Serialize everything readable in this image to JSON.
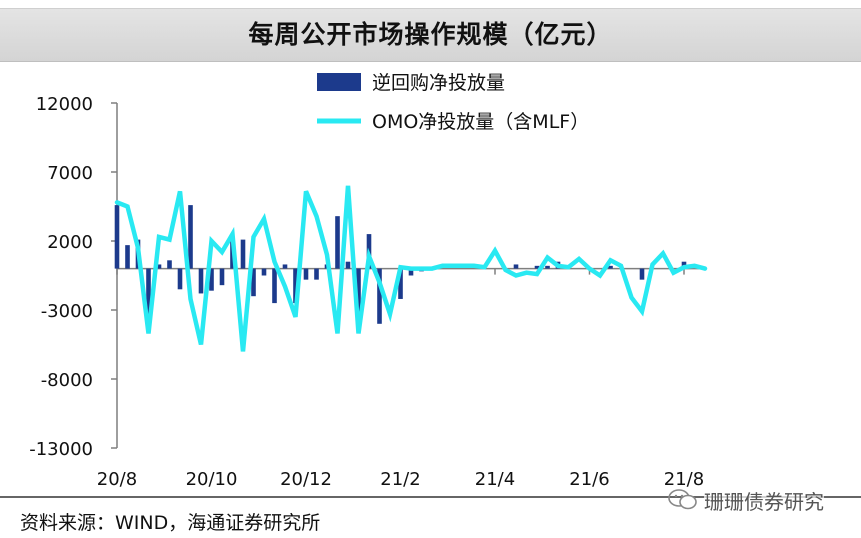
{
  "title": "每周公开市场操作规模（亿元）",
  "source": "资料来源：WIND，海通证券研究所",
  "watermark": "珊珊债券研究",
  "colors": {
    "bar": "#1c3a8c",
    "line": "#29e9f2",
    "axis": "#7f7f7f"
  },
  "chart_data": {
    "type": "bar",
    "title": "每周公开市场操作规模（亿元）",
    "xlabel": "",
    "ylabel": "",
    "ylim": [
      -13000,
      12000
    ],
    "yticks": [
      12000,
      7000,
      2000,
      -3000,
      -8000,
      -13000
    ],
    "ytick_labels": [
      "12000",
      "7000",
      "2000",
      "-3000",
      "-8000",
      "-13000"
    ],
    "xtick_labels": [
      "20/8",
      "20/10",
      "20/12",
      "21/2",
      "21/4",
      "21/6",
      "21/8"
    ],
    "xtick_index": [
      0,
      9,
      18,
      27,
      36,
      45,
      54
    ],
    "legend_position": "top",
    "series": [
      {
        "name": "逆回购净投放量",
        "type": "bar",
        "values": [
          4600,
          1700,
          2100,
          -4000,
          300,
          600,
          -1500,
          4600,
          -1800,
          -1600,
          -1200,
          2200,
          2100,
          -2000,
          -500,
          -2500,
          300,
          -2500,
          -800,
          -800,
          300,
          3800,
          500,
          -4000,
          2500,
          -4000,
          0,
          -2200,
          -500,
          -200,
          0,
          0,
          0,
          0,
          0,
          0,
          0,
          0,
          300,
          0,
          200,
          200,
          500,
          0,
          0,
          0,
          0,
          200,
          0,
          0,
          -800,
          0,
          0,
          0,
          500,
          0,
          0
        ]
      },
      {
        "name": "OMO净投放量（含MLF）",
        "type": "line",
        "values": [
          4800,
          4500,
          1500,
          -4700,
          2300,
          2100,
          5600,
          -2200,
          -5500,
          2000,
          1200,
          2500,
          -6000,
          2300,
          3600,
          500,
          -1300,
          -3500,
          5600,
          3800,
          1000,
          -4700,
          6000,
          -4700,
          900,
          -1000,
          -3300,
          100,
          0,
          0,
          0,
          200,
          200,
          200,
          200,
          100,
          1300,
          -100,
          -500,
          -300,
          -400,
          800,
          200,
          100,
          700,
          0,
          -500,
          600,
          200,
          -2100,
          -3100,
          300,
          1100,
          -300,
          100,
          200,
          0
        ]
      }
    ]
  }
}
